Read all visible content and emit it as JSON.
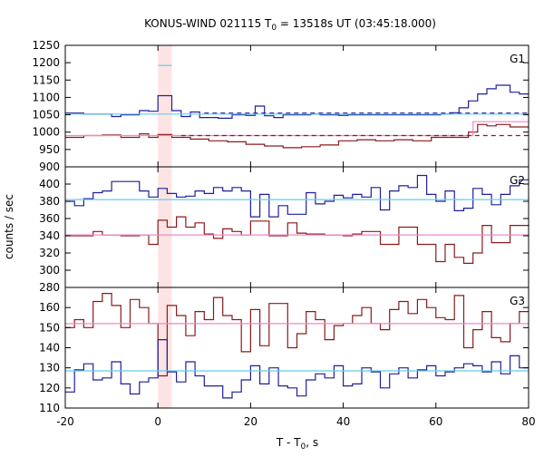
{
  "chart_data": {
    "type": "line",
    "title": "KONUS-WIND 021115 T",
    "title_sub": "0",
    "title_rest": " = 13518s UT (03:45:18.000)",
    "xlabel_main": "T - T",
    "xlabel_sub": "0",
    "xlabel_rest": ", s",
    "ylabel": "counts / sec",
    "xlim": [
      -20,
      80
    ],
    "x_ticks": [
      -20,
      0,
      20,
      40,
      60,
      80
    ],
    "highlight": {
      "x": [
        0,
        3
      ],
      "color": "#fde4e4"
    },
    "colors": {
      "blue": "#1f1f9e",
      "red": "#8b1a1a",
      "lightblue": "#66ccee",
      "pink": "#ee88cc"
    },
    "panels": [
      {
        "label": "G1",
        "ylim": [
          900,
          1250
        ],
        "yticks": [
          900,
          950,
          1000,
          1050,
          1100,
          1150,
          1200,
          1250
        ],
        "series": [
          {
            "key": "blue_bkg",
            "style": "blue",
            "x": [
              -20,
              -16,
              -12,
              -10,
              -8,
              -4,
              -2,
              0,
              3,
              5,
              7,
              9,
              13,
              16,
              19,
              21,
              23,
              25,
              27,
              29,
              33,
              35,
              37,
              39,
              41,
              43,
              45,
              49,
              51,
              55,
              59,
              61,
              63,
              65,
              67,
              69,
              71,
              73,
              76,
              78,
              80
            ],
            "y": [
              1055,
              1052,
              1052,
              1045,
              1050,
              1062,
              1060,
              1105,
              1062,
              1045,
              1058,
              1042,
              1040,
              1050,
              1048,
              1075,
              1047,
              1042,
              1050,
              1050,
              1052,
              1050,
              1050,
              1048,
              1050,
              1050,
              1050,
              1050,
              1050,
              1050,
              1050,
              1052,
              1056,
              1070,
              1090,
              1110,
              1125,
              1135,
              1115,
              1110,
              1110
            ]
          },
          {
            "key": "blue_peak",
            "style": "lightblue",
            "x": [
              0,
              3
            ],
            "y": [
              1192,
              1192
            ]
          },
          {
            "key": "red_bkg",
            "style": "red",
            "x": [
              -20,
              -16,
              -12,
              -8,
              -4,
              -2,
              0,
              3,
              7,
              11,
              15,
              19,
              23,
              27,
              31,
              35,
              39,
              43,
              47,
              51,
              55,
              59,
              63,
              67,
              69,
              71,
              73,
              76,
              80
            ],
            "y": [
              985,
              990,
              992,
              985,
              995,
              985,
              993,
              985,
              980,
              975,
              972,
              965,
              960,
              955,
              958,
              963,
              975,
              978,
              975,
              978,
              975,
              985,
              985,
              1000,
              1022,
              1018,
              1022,
              1015,
              1015
            ]
          },
          {
            "key": "pink_fit",
            "style": "pink",
            "x": [
              -20,
              68,
              68,
              80
            ],
            "y": [
              990,
              990,
              1030,
              1030
            ]
          },
          {
            "key": "blue_fit",
            "style": "lightblue",
            "x": [
              -20,
              80
            ],
            "y": [
              1052,
              1052
            ]
          },
          {
            "key": "blue_fit_dashed",
            "style": "blue_dash",
            "x": [
              10,
              80
            ],
            "y": [
              1055,
              1055
            ]
          },
          {
            "key": "red_fit_dashed",
            "style": "red_dash",
            "x": [
              5,
              80
            ],
            "y": [
              990,
              990
            ]
          }
        ]
      },
      {
        "label": "G2",
        "ylim": [
          280,
          420
        ],
        "yticks": [
          280,
          300,
          320,
          340,
          360,
          380,
          400
        ],
        "series": [
          {
            "key": "blue",
            "style": "blue",
            "x": [
              -20,
              -18,
              -16,
              -14,
              -12,
              -10,
              -8,
              -4,
              -2,
              0,
              2,
              4,
              6,
              8,
              10,
              12,
              14,
              16,
              18,
              20,
              22,
              24,
              26,
              28,
              30,
              32,
              34,
              36,
              38,
              40,
              42,
              44,
              46,
              48,
              50,
              52,
              54,
              56,
              58,
              60,
              62,
              64,
              66,
              68,
              70,
              72,
              74,
              76,
              78,
              80
            ],
            "y": [
              380,
              375,
              383,
              390,
              392,
              403,
              403,
              392,
              385,
              395,
              389,
              385,
              386,
              392,
              389,
              396,
              392,
              396,
              392,
              362,
              388,
              362,
              375,
              365,
              365,
              390,
              377,
              380,
              387,
              384,
              388,
              385,
              396,
              370,
              392,
              398,
              396,
              410,
              388,
              380,
              392,
              369,
              372,
              395,
              388,
              376,
              388,
              398,
              405,
              405
            ]
          },
          {
            "key": "red",
            "style": "red",
            "x": [
              -20,
              -16,
              -14,
              -12,
              -8,
              -4,
              -2,
              0,
              2,
              4,
              6,
              8,
              10,
              12,
              14,
              16,
              18,
              20,
              24,
              28,
              30,
              32,
              36,
              40,
              42,
              44,
              48,
              52,
              56,
              58,
              60,
              62,
              64,
              66,
              68,
              70,
              72,
              76,
              80
            ],
            "y": [
              340,
              340,
              345,
              341,
              340,
              341,
              330,
              358,
              350,
              362,
              350,
              355,
              342,
              337,
              348,
              345,
              341,
              357,
              340,
              355,
              343,
              342,
              341,
              340,
              342,
              345,
              330,
              350,
              330,
              330,
              310,
              330,
              315,
              308,
              320,
              352,
              332,
              352,
              353
            ]
          },
          {
            "key": "blue_fit",
            "style": "lightblue",
            "x": [
              -20,
              80
            ],
            "y": [
              382,
              382
            ]
          },
          {
            "key": "pink_fit",
            "style": "pink",
            "x": [
              -20,
              80
            ],
            "y": [
              341,
              341
            ]
          }
        ]
      },
      {
        "label": "G3",
        "ylim": [
          110,
          170
        ],
        "yticks": [
          110,
          120,
          130,
          140,
          150,
          160
        ],
        "series": [
          {
            "key": "red",
            "style": "red",
            "x": [
              -20,
              -18,
              -16,
              -14,
              -12,
              -10,
              -8,
              -6,
              -4,
              -2,
              0,
              2,
              4,
              6,
              8,
              10,
              12,
              14,
              16,
              18,
              20,
              22,
              24,
              26,
              28,
              30,
              32,
              34,
              36,
              38,
              40,
              42,
              44,
              46,
              48,
              50,
              52,
              54,
              56,
              58,
              60,
              62,
              64,
              66,
              68,
              70,
              72,
              74,
              76,
              78,
              80
            ],
            "y": [
              150,
              154,
              150,
              163,
              167,
              161,
              150,
              164,
              160,
              152,
              126,
              161,
              156,
              146,
              158,
              154,
              165,
              156,
              154,
              138,
              159,
              141,
              162,
              162,
              140,
              147,
              158,
              154,
              144,
              151,
              152,
              156,
              160,
              152,
              149,
              159,
              163,
              157,
              164,
              160,
              155,
              154,
              166,
              140,
              149,
              158,
              145,
              143,
              152,
              158,
              158
            ]
          },
          {
            "key": "blue",
            "style": "blue",
            "x": [
              -20,
              -18,
              -16,
              -14,
              -12,
              -10,
              -8,
              -6,
              -4,
              -2,
              0,
              2,
              4,
              6,
              8,
              10,
              12,
              14,
              16,
              18,
              20,
              22,
              24,
              26,
              28,
              30,
              32,
              34,
              36,
              38,
              40,
              42,
              44,
              46,
              48,
              50,
              52,
              54,
              56,
              58,
              60,
              62,
              64,
              66,
              68,
              70,
              72,
              74,
              76,
              78,
              80
            ],
            "y": [
              118,
              129,
              132,
              124,
              125,
              133,
              122,
              117,
              123,
              125,
              144,
              128,
              123,
              133,
              126,
              121,
              121,
              115,
              118,
              124,
              131,
              122,
              130,
              121,
              120,
              116,
              124,
              127,
              125,
              131,
              121,
              122,
              130,
              128,
              120,
              127,
              130,
              125,
              129,
              131,
              126,
              128,
              130,
              132,
              131,
              128,
              133,
              127,
              136,
              130,
              130
            ]
          },
          {
            "key": "pink_fit",
            "style": "pink",
            "x": [
              -20,
              80
            ],
            "y": [
              152,
              152
            ]
          },
          {
            "key": "blue_fit",
            "style": "lightblue",
            "x": [
              -20,
              80
            ],
            "y": [
              128.5,
              128.5
            ]
          }
        ]
      }
    ]
  }
}
